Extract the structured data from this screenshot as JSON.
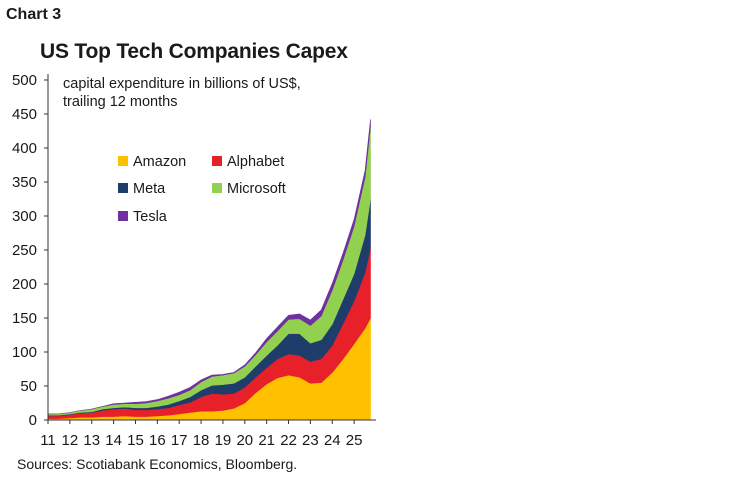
{
  "header": {
    "chart_number": "Chart 3"
  },
  "footer": {
    "source": "Sources: Scotiabank Economics, Bloomberg."
  },
  "chart_data": {
    "type": "area",
    "stacked": true,
    "title": "US Top Tech Companies Capex",
    "subtitle_line1": "capital expenditure in billions of US$,",
    "subtitle_line2": "trailing 12 months",
    "xlabel": "",
    "ylabel": "",
    "ylim": [
      0,
      500
    ],
    "xlim": [
      2011,
      2026
    ],
    "y_ticks": [
      0,
      50,
      100,
      150,
      200,
      250,
      300,
      350,
      400,
      450,
      500
    ],
    "x_ticks": [
      {
        "value": 2011,
        "label": "11"
      },
      {
        "value": 2012,
        "label": "12"
      },
      {
        "value": 2013,
        "label": "13"
      },
      {
        "value": 2014,
        "label": "14"
      },
      {
        "value": 2015,
        "label": "15"
      },
      {
        "value": 2016,
        "label": "16"
      },
      {
        "value": 2017,
        "label": "17"
      },
      {
        "value": 2018,
        "label": "18"
      },
      {
        "value": 2019,
        "label": "19"
      },
      {
        "value": 2020,
        "label": "20"
      },
      {
        "value": 2021,
        "label": "21"
      },
      {
        "value": 2022,
        "label": "22"
      },
      {
        "value": 2023,
        "label": "23"
      },
      {
        "value": 2024,
        "label": "24"
      },
      {
        "value": 2025,
        "label": "25"
      }
    ],
    "grid": false,
    "legend_position": "top-center",
    "x": [
      2011.0,
      2011.5,
      2012.0,
      2012.5,
      2013.0,
      2013.5,
      2014.0,
      2014.5,
      2015.0,
      2015.5,
      2016.0,
      2016.5,
      2017.0,
      2017.5,
      2018.0,
      2018.5,
      2019.0,
      2019.5,
      2020.0,
      2020.5,
      2021.0,
      2021.5,
      2022.0,
      2022.5,
      2023.0,
      2023.5,
      2024.0,
      2024.5,
      2025.0,
      2025.5,
      2025.75
    ],
    "series": [
      {
        "name": "Amazon",
        "color": "#ffc000",
        "values": [
          2,
          2,
          3,
          4,
          4,
          5,
          5,
          6,
          5,
          5,
          6,
          7,
          9,
          11,
          13,
          13,
          14,
          17,
          25,
          40,
          53,
          62,
          66,
          63,
          54,
          55,
          70,
          90,
          112,
          135,
          150
        ]
      },
      {
        "name": "Alphabet",
        "color": "#e8202a",
        "values": [
          4,
          4,
          5,
          6,
          7,
          9,
          11,
          11,
          10,
          10,
          10,
          11,
          13,
          15,
          21,
          26,
          24,
          22,
          23,
          23,
          24,
          28,
          31,
          32,
          32,
          35,
          40,
          52,
          63,
          82,
          103
        ]
      },
      {
        "name": "Meta",
        "color": "#1f3d6b",
        "values": [
          1,
          1,
          1,
          1,
          1,
          2,
          2,
          2,
          3,
          3,
          4,
          5,
          6,
          8,
          10,
          12,
          14,
          15,
          15,
          16,
          18,
          20,
          30,
          32,
          27,
          28,
          31,
          36,
          40,
          55,
          72
        ]
      },
      {
        "name": "Microsoft",
        "color": "#92d050",
        "values": [
          2,
          2,
          2,
          3,
          4,
          4,
          5,
          5,
          6,
          7,
          8,
          9,
          9,
          10,
          12,
          13,
          14,
          15,
          16,
          17,
          20,
          21,
          21,
          22,
          26,
          35,
          50,
          58,
          70,
          85,
          107
        ]
      },
      {
        "name": "Tesla",
        "color": "#7030a0",
        "values": [
          0,
          0,
          0,
          0,
          0,
          0,
          1,
          1,
          2,
          2,
          2,
          3,
          4,
          4,
          3,
          2,
          1,
          1,
          2,
          3,
          5,
          6,
          6,
          7,
          8,
          9,
          10,
          10,
          10,
          10,
          10
        ]
      }
    ]
  }
}
